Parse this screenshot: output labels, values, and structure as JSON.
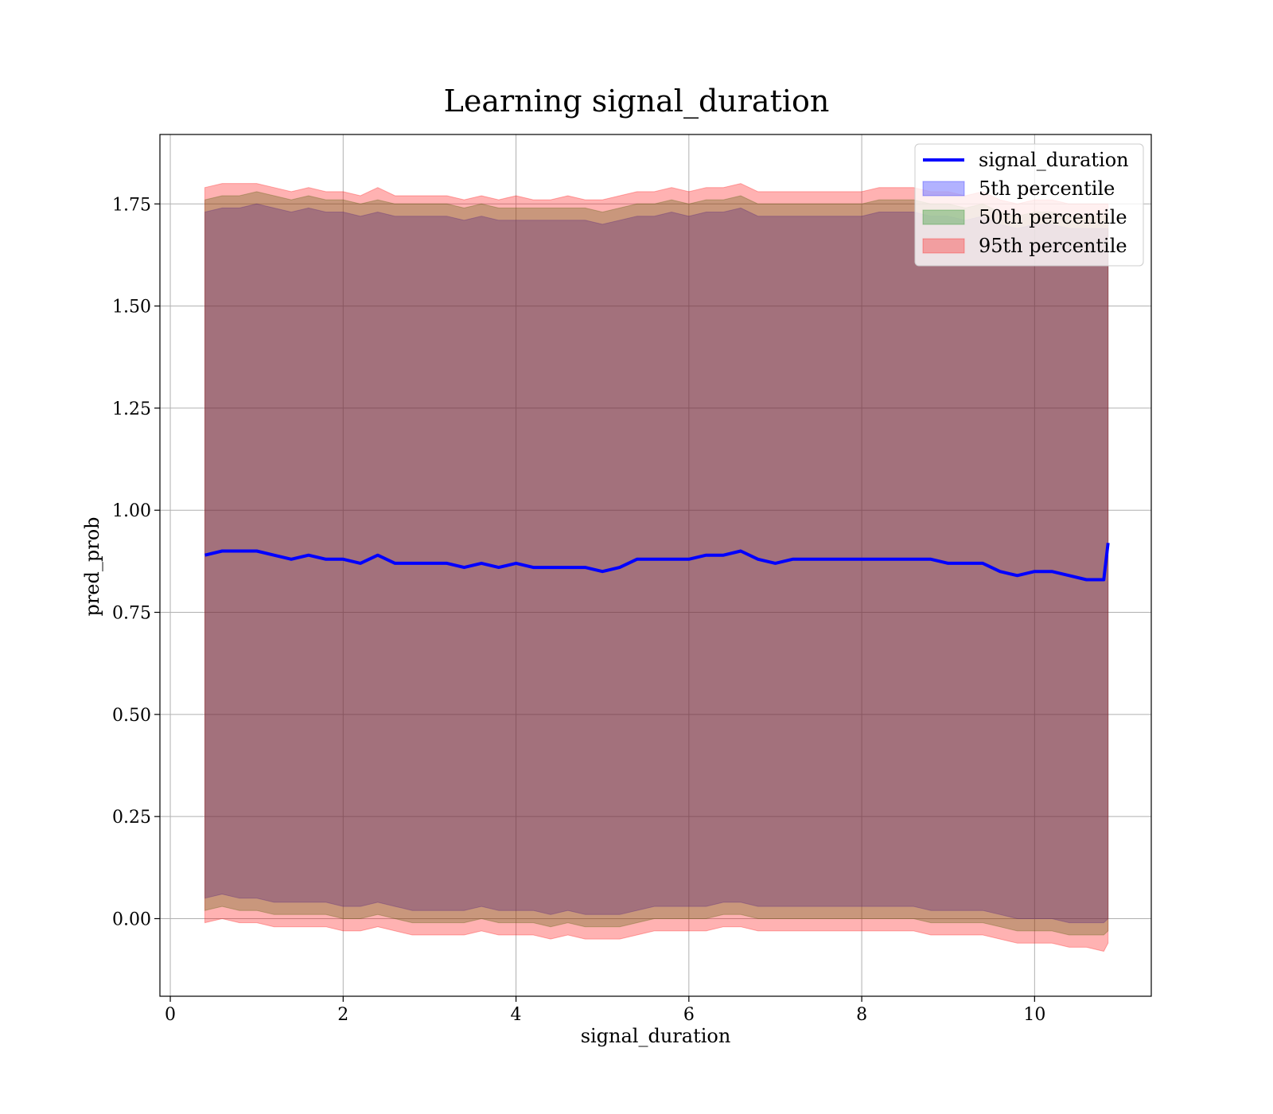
{
  "chart_data": {
    "type": "line",
    "title": "Learning signal_duration",
    "xlabel": "signal_duration",
    "ylabel": "pred_prob",
    "xlim": [
      -0.12,
      11.35
    ],
    "ylim": [
      -0.19,
      1.92
    ],
    "xticks": [
      0,
      2,
      4,
      6,
      8,
      10
    ],
    "xtick_labels": [
      "0",
      "2",
      "4",
      "6",
      "8",
      "10"
    ],
    "yticks": [
      0.0,
      0.25,
      0.5,
      0.75,
      1.0,
      1.25,
      1.5,
      1.75
    ],
    "ytick_labels": [
      "0.00",
      "0.25",
      "0.50",
      "0.75",
      "1.00",
      "1.25",
      "1.50",
      "1.75"
    ],
    "grid": true,
    "legend_position": "top-right",
    "x": [
      0.4,
      0.6,
      0.8,
      1.0,
      1.2,
      1.4,
      1.6,
      1.8,
      2.0,
      2.2,
      2.4,
      2.6,
      2.8,
      3.0,
      3.2,
      3.4,
      3.6,
      3.8,
      4.0,
      4.2,
      4.4,
      4.6,
      4.8,
      5.0,
      5.2,
      5.4,
      5.6,
      5.8,
      6.0,
      6.2,
      6.4,
      6.6,
      6.8,
      7.0,
      7.2,
      7.4,
      7.6,
      7.8,
      8.0,
      8.2,
      8.4,
      8.6,
      8.8,
      9.0,
      9.2,
      9.4,
      9.6,
      9.8,
      10.0,
      10.2,
      10.4,
      10.6,
      10.8,
      10.85
    ],
    "series": [
      {
        "name": "signal_duration",
        "kind": "line",
        "color": "#0000ff",
        "values": [
          0.89,
          0.9,
          0.9,
          0.9,
          0.89,
          0.88,
          0.89,
          0.88,
          0.88,
          0.87,
          0.89,
          0.87,
          0.87,
          0.87,
          0.87,
          0.86,
          0.87,
          0.86,
          0.87,
          0.86,
          0.86,
          0.86,
          0.86,
          0.85,
          0.86,
          0.88,
          0.88,
          0.88,
          0.88,
          0.89,
          0.89,
          0.9,
          0.88,
          0.87,
          0.88,
          0.88,
          0.88,
          0.88,
          0.88,
          0.88,
          0.88,
          0.88,
          0.88,
          0.87,
          0.87,
          0.87,
          0.85,
          0.84,
          0.85,
          0.85,
          0.84,
          0.83,
          0.83,
          0.92
        ]
      },
      {
        "name": "5th percentile",
        "kind": "band",
        "color": "#0000ff",
        "lower": [
          0.05,
          0.06,
          0.05,
          0.05,
          0.04,
          0.04,
          0.04,
          0.04,
          0.03,
          0.03,
          0.04,
          0.03,
          0.02,
          0.02,
          0.02,
          0.02,
          0.03,
          0.02,
          0.02,
          0.02,
          0.01,
          0.02,
          0.01,
          0.01,
          0.01,
          0.02,
          0.03,
          0.03,
          0.03,
          0.03,
          0.04,
          0.04,
          0.03,
          0.03,
          0.03,
          0.03,
          0.03,
          0.03,
          0.03,
          0.03,
          0.03,
          0.03,
          0.02,
          0.02,
          0.02,
          0.02,
          0.01,
          0.0,
          0.0,
          0.0,
          -0.01,
          -0.01,
          -0.01,
          0.0
        ],
        "upper": [
          1.73,
          1.74,
          1.74,
          1.75,
          1.74,
          1.73,
          1.74,
          1.73,
          1.73,
          1.72,
          1.73,
          1.72,
          1.72,
          1.72,
          1.72,
          1.71,
          1.72,
          1.71,
          1.71,
          1.71,
          1.71,
          1.71,
          1.71,
          1.7,
          1.71,
          1.72,
          1.72,
          1.73,
          1.72,
          1.73,
          1.73,
          1.74,
          1.72,
          1.72,
          1.72,
          1.72,
          1.72,
          1.72,
          1.72,
          1.73,
          1.73,
          1.73,
          1.72,
          1.72,
          1.71,
          1.72,
          1.7,
          1.69,
          1.7,
          1.7,
          1.69,
          1.69,
          1.69,
          1.69
        ]
      },
      {
        "name": "50th percentile",
        "kind": "band",
        "color": "#008000",
        "lower": [
          0.02,
          0.03,
          0.02,
          0.02,
          0.01,
          0.01,
          0.01,
          0.01,
          0.0,
          0.0,
          0.01,
          0.0,
          -0.01,
          -0.01,
          -0.01,
          -0.01,
          0.0,
          -0.01,
          -0.01,
          -0.01,
          -0.02,
          -0.01,
          -0.02,
          -0.02,
          -0.02,
          -0.01,
          0.0,
          0.0,
          0.0,
          0.0,
          0.01,
          0.01,
          0.0,
          0.0,
          0.0,
          0.0,
          0.0,
          0.0,
          0.0,
          0.0,
          0.0,
          0.0,
          -0.01,
          -0.01,
          -0.01,
          -0.01,
          -0.02,
          -0.03,
          -0.03,
          -0.03,
          -0.04,
          -0.04,
          -0.04,
          -0.03
        ],
        "upper": [
          1.76,
          1.77,
          1.77,
          1.78,
          1.77,
          1.76,
          1.77,
          1.76,
          1.76,
          1.75,
          1.76,
          1.75,
          1.75,
          1.75,
          1.75,
          1.74,
          1.75,
          1.74,
          1.74,
          1.74,
          1.74,
          1.74,
          1.74,
          1.73,
          1.74,
          1.75,
          1.75,
          1.76,
          1.75,
          1.76,
          1.76,
          1.77,
          1.75,
          1.75,
          1.75,
          1.75,
          1.75,
          1.75,
          1.75,
          1.76,
          1.76,
          1.76,
          1.75,
          1.75,
          1.74,
          1.75,
          1.73,
          1.72,
          1.73,
          1.73,
          1.72,
          1.72,
          1.72,
          1.72
        ]
      },
      {
        "name": "95th percentile",
        "kind": "band",
        "color": "#ff0000",
        "lower": [
          -0.01,
          0.0,
          -0.01,
          -0.01,
          -0.02,
          -0.02,
          -0.02,
          -0.02,
          -0.03,
          -0.03,
          -0.02,
          -0.03,
          -0.04,
          -0.04,
          -0.04,
          -0.04,
          -0.03,
          -0.04,
          -0.04,
          -0.04,
          -0.05,
          -0.04,
          -0.05,
          -0.05,
          -0.05,
          -0.04,
          -0.03,
          -0.03,
          -0.03,
          -0.03,
          -0.02,
          -0.02,
          -0.03,
          -0.03,
          -0.03,
          -0.03,
          -0.03,
          -0.03,
          -0.03,
          -0.03,
          -0.03,
          -0.03,
          -0.04,
          -0.04,
          -0.04,
          -0.04,
          -0.05,
          -0.06,
          -0.06,
          -0.06,
          -0.07,
          -0.07,
          -0.08,
          -0.06
        ],
        "upper": [
          1.79,
          1.8,
          1.8,
          1.8,
          1.79,
          1.78,
          1.79,
          1.78,
          1.78,
          1.77,
          1.79,
          1.77,
          1.77,
          1.77,
          1.77,
          1.76,
          1.77,
          1.76,
          1.77,
          1.76,
          1.76,
          1.77,
          1.76,
          1.76,
          1.77,
          1.78,
          1.78,
          1.79,
          1.78,
          1.79,
          1.79,
          1.8,
          1.78,
          1.78,
          1.78,
          1.78,
          1.78,
          1.78,
          1.78,
          1.79,
          1.79,
          1.79,
          1.78,
          1.78,
          1.77,
          1.78,
          1.76,
          1.75,
          1.76,
          1.76,
          1.75,
          1.75,
          1.75,
          1.75
        ]
      }
    ]
  }
}
